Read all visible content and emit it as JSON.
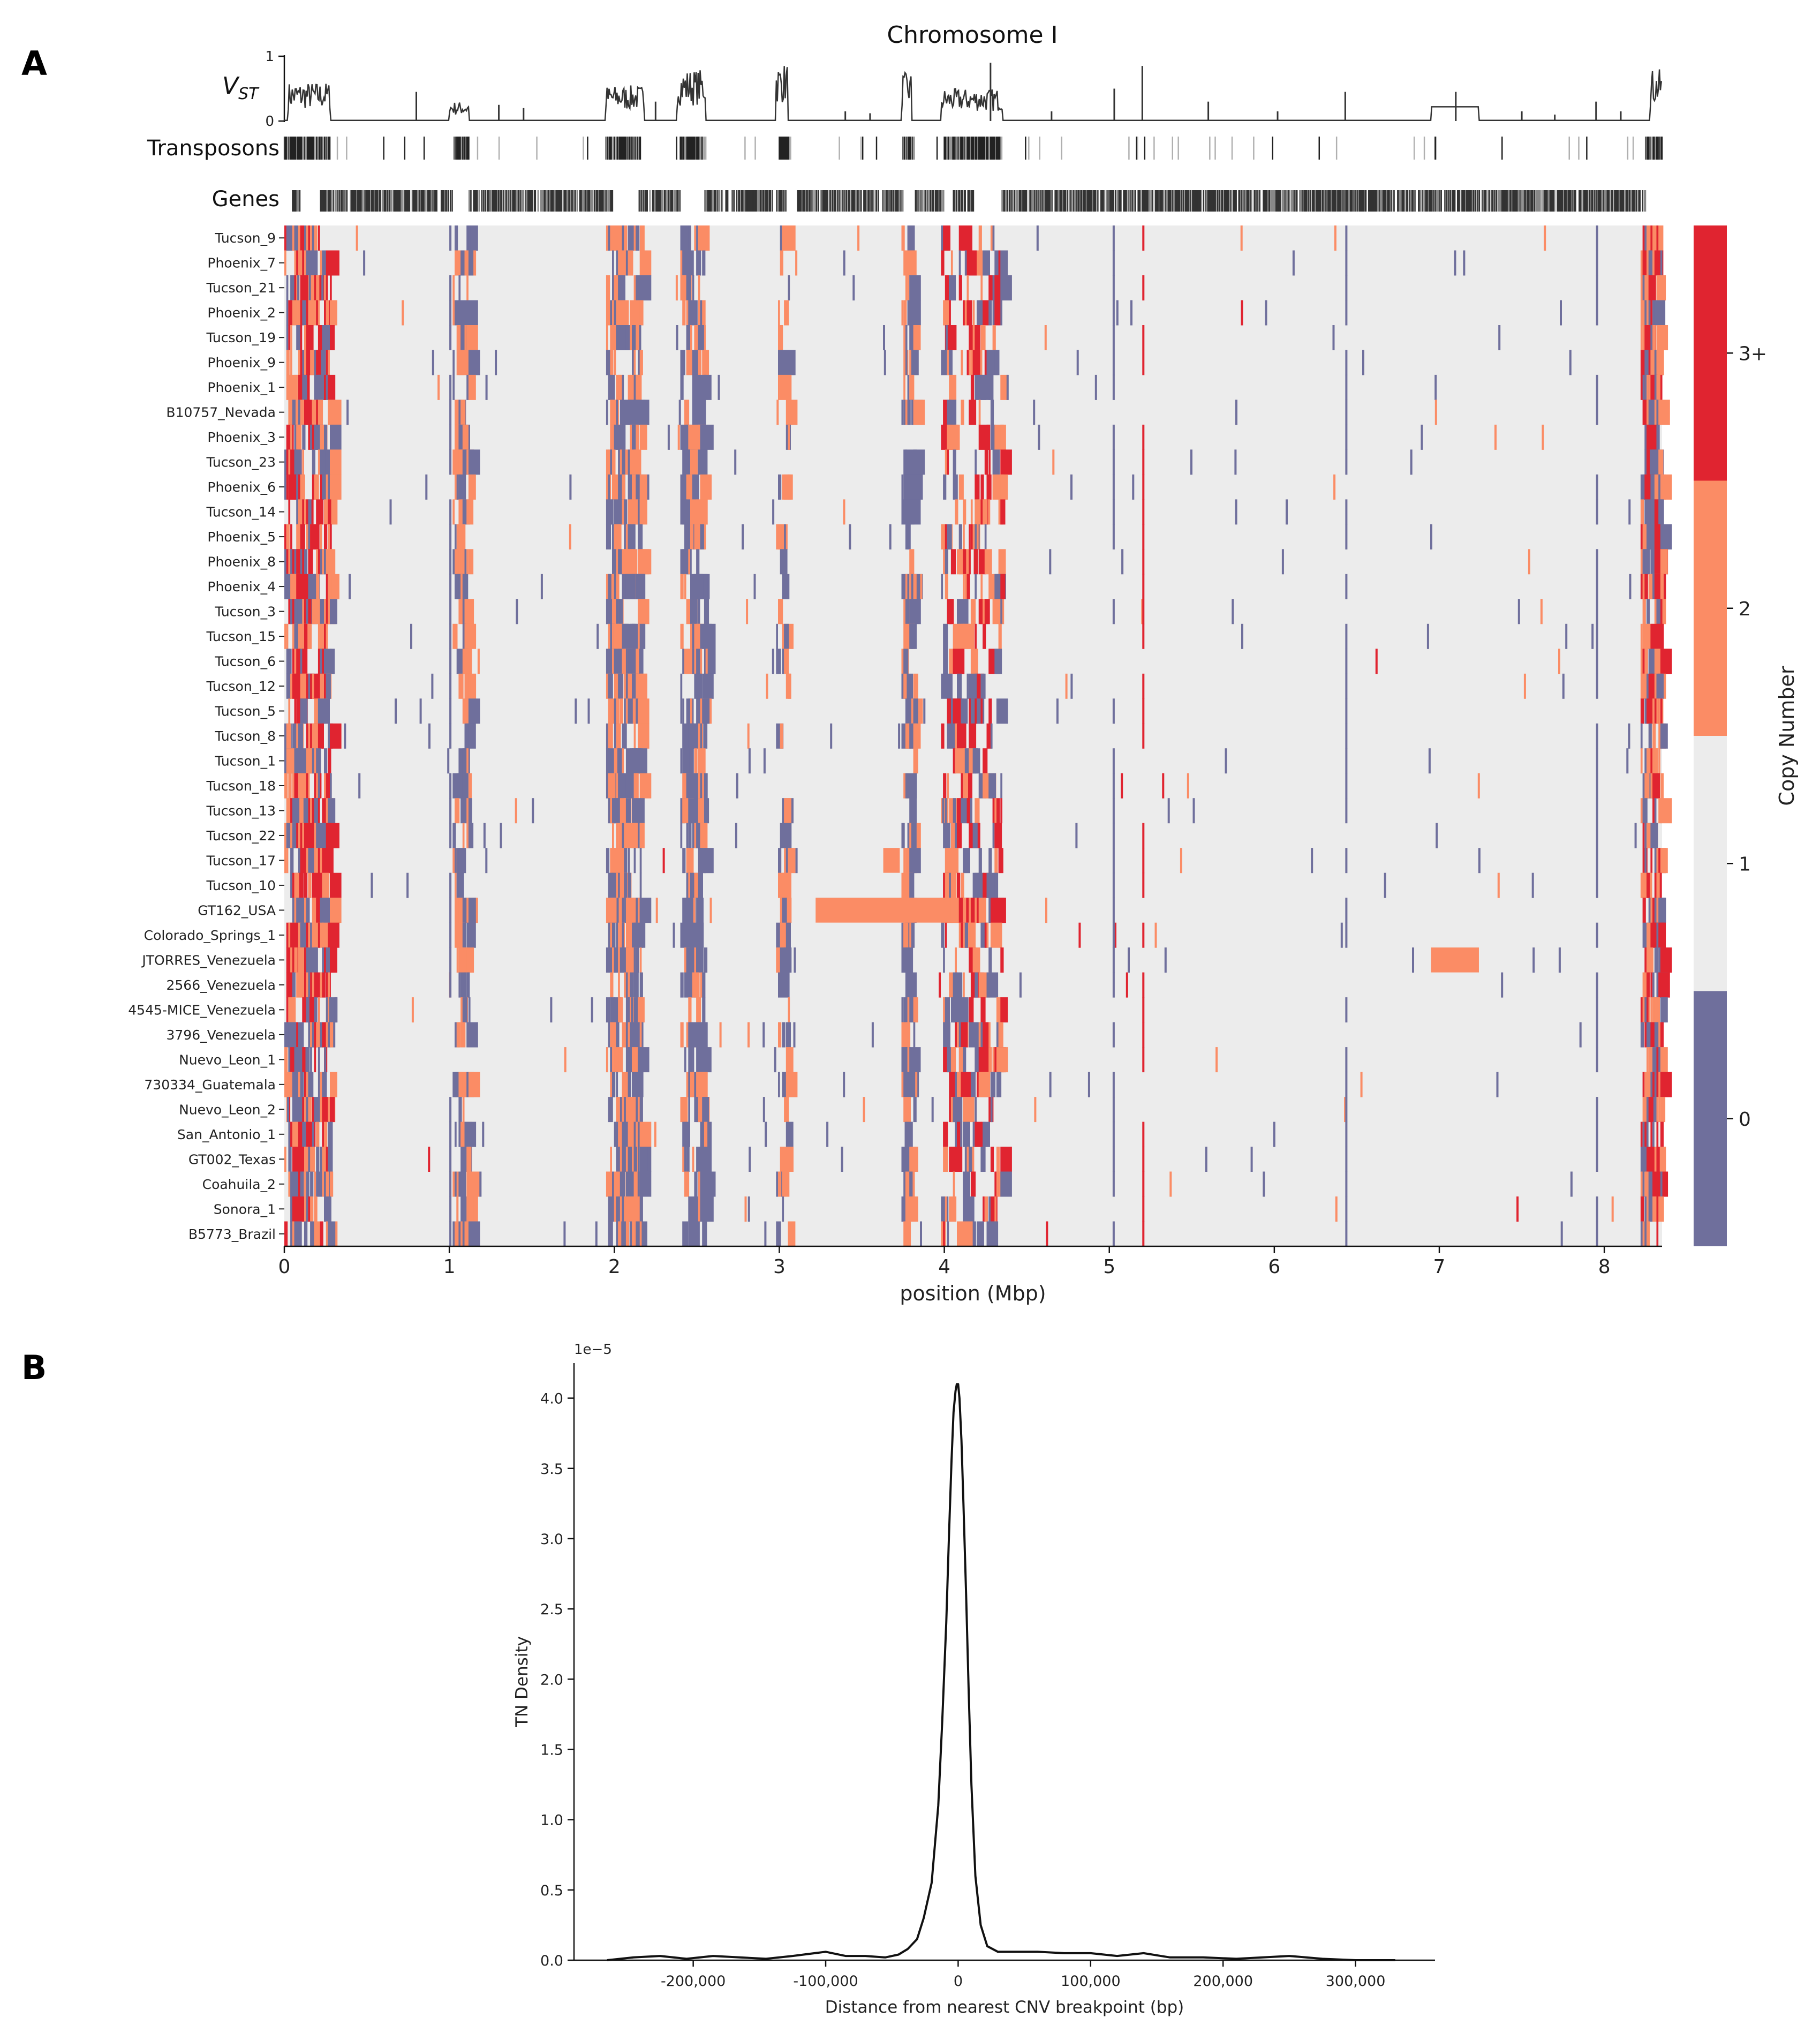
{
  "panels": {
    "a": "A",
    "b": "B"
  },
  "chart_data": [
    {
      "type": "heatmap",
      "title": "Chromosome I",
      "xlabel": "position (Mbp)",
      "xlim": [
        0,
        8.35
      ],
      "x_ticks": [
        "0",
        "1",
        "2",
        "3",
        "4",
        "5",
        "6",
        "7",
        "8"
      ],
      "tracks": {
        "vst_label": "V",
        "vst_sub": "ST",
        "vst_ticks": [
          "1",
          "0"
        ],
        "transposons_label": "Transposons",
        "genes_label": "Genes"
      },
      "colorbar": {
        "label": "Copy Number",
        "levels": [
          "0",
          "1",
          "2",
          "3+"
        ],
        "colors": [
          "#6f6f9c",
          "#ececec",
          "#fb8c65",
          "#e02430"
        ]
      },
      "samples": [
        "Tucson_9",
        "Phoenix_7",
        "Tucson_21",
        "Phoenix_2",
        "Tucson_19",
        "Phoenix_9",
        "Phoenix_1",
        "B10757_Nevada",
        "Phoenix_3",
        "Tucson_23",
        "Phoenix_6",
        "Tucson_14",
        "Phoenix_5",
        "Phoenix_8",
        "Phoenix_4",
        "Tucson_3",
        "Tucson_15",
        "Tucson_6",
        "Tucson_12",
        "Tucson_5",
        "Tucson_8",
        "Tucson_1",
        "Tucson_18",
        "Tucson_13",
        "Tucson_22",
        "Tucson_17",
        "Tucson_10",
        "GT162_USA",
        "Colorado_Springs_1",
        "JTORRES_Venezuela",
        "2566_Venezuela",
        "4545-MICE_Venezuela",
        "3796_Venezuela",
        "Nuevo_Leon_1",
        "730334_Guatemala",
        "Nuevo_Leon_2",
        "San_Antonio_1",
        "GT002_Texas",
        "Coahuila_2",
        "Sonora_1",
        "B5773_Brazil"
      ],
      "notable_segments": [
        {
          "sample": "GT162_USA",
          "start_mbp": 3.22,
          "end_mbp": 4.03,
          "copy_number": "2"
        },
        {
          "sample": "JTORRES_Venezuela",
          "start_mbp": 6.95,
          "end_mbp": 7.24,
          "copy_number": "2"
        },
        {
          "sample": "Tucson_17",
          "start_mbp": 3.63,
          "end_mbp": 3.73,
          "copy_number": "2"
        }
      ]
    },
    {
      "type": "line",
      "xlabel": "Distance from nearest CNV breakpoint (bp)",
      "ylabel": "TN Density",
      "y_offset_label": "1e−5",
      "xlim": [
        -290000,
        360000
      ],
      "ylim": [
        0,
        4.25
      ],
      "x_ticks": [
        {
          "value": -200000,
          "label": "-200,000"
        },
        {
          "value": -100000,
          "label": "-100,000"
        },
        {
          "value": 0,
          "label": "0"
        },
        {
          "value": 100000,
          "label": "100,000"
        },
        {
          "value": 200000,
          "label": "200,000"
        },
        {
          "value": 300000,
          "label": "300,000"
        }
      ],
      "y_ticks": [
        {
          "value": 0,
          "label": "0.0"
        },
        {
          "value": 0.5,
          "label": "0.5"
        },
        {
          "value": 1.0,
          "label": "1.0"
        },
        {
          "value": 1.5,
          "label": "1.5"
        },
        {
          "value": 2.0,
          "label": "2.0"
        },
        {
          "value": 2.5,
          "label": "2.5"
        },
        {
          "value": 3.0,
          "label": "3.0"
        },
        {
          "value": 3.5,
          "label": "3.5"
        },
        {
          "value": 4.0,
          "label": "4.0"
        }
      ],
      "x": [
        -265000,
        -245000,
        -225000,
        -205000,
        -185000,
        -165000,
        -145000,
        -125000,
        -100000,
        -85000,
        -70000,
        -55000,
        -45000,
        -38000,
        -31000,
        -26000,
        -20000,
        -15000,
        -12000,
        -9000,
        -7000,
        -5000,
        -3500,
        -2000,
        -1000,
        0,
        1000,
        2500,
        4000,
        6000,
        8000,
        10000,
        13000,
        17000,
        22000,
        30000,
        45000,
        60000,
        80000,
        100000,
        120000,
        140000,
        160000,
        185000,
        210000,
        230000,
        250000,
        275000,
        300000,
        330000
      ],
      "values": [
        0.0,
        0.02,
        0.03,
        0.01,
        0.03,
        0.02,
        0.01,
        0.03,
        0.06,
        0.03,
        0.03,
        0.02,
        0.04,
        0.08,
        0.15,
        0.3,
        0.55,
        1.1,
        1.7,
        2.4,
        3.0,
        3.55,
        3.9,
        4.05,
        4.1,
        4.1,
        4.0,
        3.7,
        3.25,
        2.6,
        1.9,
        1.25,
        0.6,
        0.25,
        0.1,
        0.06,
        0.06,
        0.06,
        0.05,
        0.05,
        0.03,
        0.05,
        0.02,
        0.02,
        0.01,
        0.02,
        0.03,
        0.01,
        0.0,
        0.0
      ]
    }
  ]
}
